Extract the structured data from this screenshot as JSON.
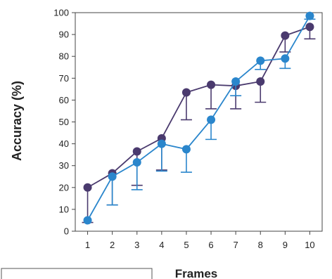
{
  "chart_data": {
    "type": "line",
    "title": "",
    "xlabel": "Frames",
    "ylabel": "Accuracy (%)",
    "x": [
      1,
      2,
      3,
      4,
      5,
      6,
      7,
      8,
      9,
      10
    ],
    "xlim": [
      0.5,
      10.5
    ],
    "ylim": [
      0,
      100
    ],
    "yticks": [
      0,
      10,
      20,
      30,
      40,
      50,
      60,
      70,
      80,
      90,
      100
    ],
    "grid": false,
    "legend": "none",
    "series": [
      {
        "color": "#4a3a6e",
        "marker": "circle",
        "values": [
          20,
          26.5,
          36.5,
          42.5,
          63.5,
          67,
          66.5,
          68.5,
          89.5,
          93.5
        ],
        "error_low": [
          4,
          12,
          21,
          28,
          51,
          56,
          56,
          59,
          82,
          88
        ],
        "error_high": [
          20,
          26.5,
          36.5,
          42.5,
          63.5,
          67,
          66.5,
          68.5,
          89.5,
          93.5
        ]
      },
      {
        "color": "#2a86cc",
        "marker": "circle",
        "values": [
          5,
          25,
          31.5,
          40,
          37.5,
          51,
          68.5,
          78,
          79,
          98.5
        ],
        "error_low": [
          5,
          12,
          19,
          27.5,
          27,
          42,
          62,
          74,
          74.5,
          97
        ],
        "error_high": [
          5,
          25,
          31.5,
          40,
          37.5,
          51,
          68.5,
          78,
          79,
          98.5
        ]
      }
    ],
    "plot_background": "#ffffff",
    "axis_color": "#444444"
  }
}
